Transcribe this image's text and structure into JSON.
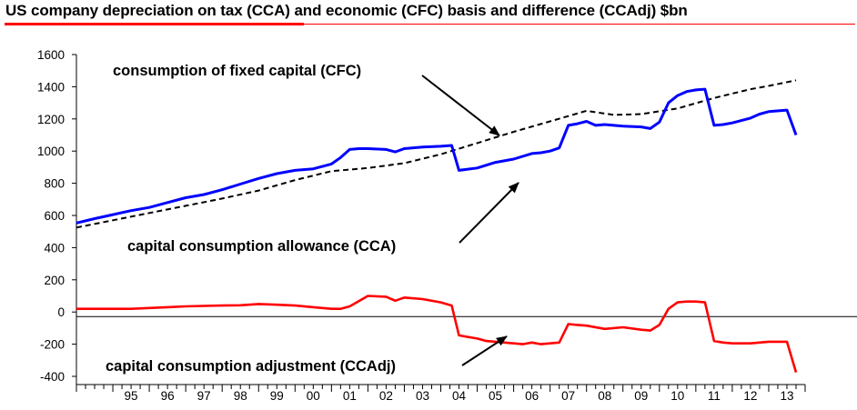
{
  "chart_data": {
    "type": "line",
    "title": "US company depreciation on tax (CCA) and economic (CFC) basis and difference (CCAdj) $bn",
    "xlabel": "",
    "ylabel": "",
    "ylim": [
      -400,
      1600
    ],
    "yticks": [
      -400,
      -200,
      0,
      200,
      400,
      600,
      800,
      1000,
      1200,
      1400,
      1600
    ],
    "ytick_labels": [
      "-400",
      "-200",
      "0",
      "200",
      "400",
      "600",
      "800",
      "1000",
      "1200",
      "1400",
      "1600"
    ],
    "xlim": [
      1994.0,
      2014.0
    ],
    "xtick_labels": [
      "95",
      "96",
      "97",
      "98",
      "99",
      "00",
      "01",
      "02",
      "03",
      "04",
      "05",
      "06",
      "07",
      "08",
      "09",
      "10",
      "11",
      "12",
      "13"
    ],
    "grid": false,
    "series": [
      {
        "name": "consumption of fixed capital (CFC)",
        "color": "#000000",
        "style": "dashed",
        "x": [
          1994.0,
          1995.0,
          1996.0,
          1997.0,
          1998.0,
          1999.0,
          2000.0,
          2001.0,
          2002.0,
          2003.0,
          2004.0,
          2005.0,
          2006.0,
          2007.0,
          2008.0,
          2008.75,
          2009.5,
          2010.5,
          2011.5,
          2012.5,
          2013.0,
          2013.75
        ],
        "y": [
          525,
          570,
          615,
          660,
          705,
          755,
          820,
          875,
          895,
          925,
          980,
          1050,
          1120,
          1185,
          1250,
          1225,
          1230,
          1265,
          1330,
          1385,
          1405,
          1440
        ]
      },
      {
        "name": "capital consumption allowance (CCA)",
        "color": "#0000ff",
        "style": "solid",
        "x": [
          1994.0,
          1994.5,
          1995.0,
          1995.5,
          1996.0,
          1996.5,
          1997.0,
          1997.5,
          1998.0,
          1998.5,
          1999.0,
          1999.5,
          2000.0,
          2000.5,
          2001.0,
          2001.25,
          2001.5,
          2001.75,
          2002.0,
          2002.5,
          2002.75,
          2003.0,
          2003.5,
          2004.0,
          2004.3,
          2004.5,
          2005.0,
          2005.5,
          2006.0,
          2006.5,
          2006.75,
          2007.0,
          2007.25,
          2007.5,
          2007.75,
          2008.0,
          2008.25,
          2008.5,
          2009.0,
          2009.5,
          2009.75,
          2010.0,
          2010.25,
          2010.5,
          2010.75,
          2011.0,
          2011.25,
          2011.5,
          2011.75,
          2012.0,
          2012.5,
          2012.75,
          2013.0,
          2013.5,
          2013.75
        ],
        "y": [
          553,
          580,
          605,
          630,
          650,
          680,
          710,
          730,
          760,
          795,
          830,
          860,
          880,
          890,
          920,
          960,
          1010,
          1015,
          1015,
          1010,
          995,
          1015,
          1025,
          1030,
          1035,
          880,
          895,
          930,
          950,
          985,
          990,
          1000,
          1020,
          1160,
          1170,
          1185,
          1160,
          1165,
          1155,
          1150,
          1140,
          1180,
          1300,
          1345,
          1370,
          1380,
          1385,
          1160,
          1165,
          1175,
          1205,
          1230,
          1245,
          1255,
          1100
        ]
      },
      {
        "name": "capital consumption adjustment (CCAdj)",
        "color": "#ff0000",
        "style": "solid",
        "x": [
          1994.0,
          1994.5,
          1995.0,
          1995.5,
          1996.0,
          1996.5,
          1997.0,
          1997.5,
          1998.0,
          1998.5,
          1999.0,
          1999.5,
          2000.0,
          2000.5,
          2000.75,
          2001.0,
          2001.25,
          2001.5,
          2002.0,
          2002.5,
          2002.75,
          2003.0,
          2003.5,
          2004.0,
          2004.3,
          2004.5,
          2005.0,
          2005.25,
          2005.5,
          2006.0,
          2006.25,
          2006.5,
          2006.75,
          2007.0,
          2007.25,
          2007.5,
          2007.75,
          2008.0,
          2008.5,
          2009.0,
          2009.5,
          2009.75,
          2010.0,
          2010.25,
          2010.5,
          2010.75,
          2011.0,
          2011.25,
          2011.5,
          2011.75,
          2012.0,
          2012.5,
          2013.0,
          2013.5,
          2013.75
        ],
        "y": [
          20,
          20,
          20,
          20,
          25,
          30,
          35,
          38,
          40,
          42,
          50,
          45,
          40,
          30,
          25,
          20,
          20,
          35,
          100,
          95,
          70,
          90,
          80,
          60,
          40,
          -145,
          -165,
          -180,
          -185,
          -195,
          -200,
          -190,
          -200,
          -195,
          -190,
          -75,
          -80,
          -85,
          -105,
          -95,
          -110,
          -115,
          -80,
          20,
          60,
          65,
          65,
          60,
          -180,
          -190,
          -195,
          -195,
          -185,
          -185,
          -375
        ]
      }
    ],
    "annotations": [
      {
        "text": "consumption of fixed capital (CFC)",
        "points_to": "CFC line near 2005"
      },
      {
        "text": "capital consumption allowance (CCA)",
        "points_to": "CCA line near 2005"
      },
      {
        "text": "capital consumption adjustment (CCAdj)",
        "points_to": "CCAdj line near 2005"
      }
    ]
  }
}
